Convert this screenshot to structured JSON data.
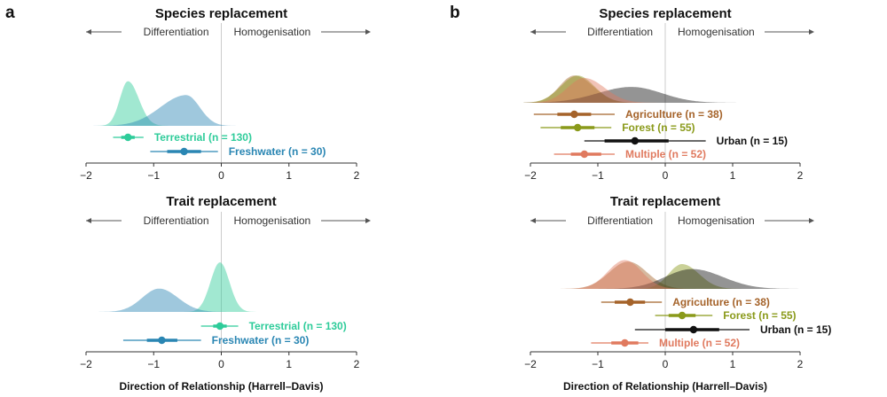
{
  "figure": {
    "panel_labels": [
      "a",
      "b"
    ],
    "direction_left": "Differentiation",
    "direction_right": "Homogenisation"
  },
  "chart_data": [
    {
      "type": "density",
      "panel": "a",
      "title": "Species replacement",
      "xlabel": "",
      "xlim": [
        -2,
        2
      ],
      "xticks": [
        -2,
        -1,
        0,
        1,
        2
      ],
      "series": [
        {
          "name": "Terrestrial (n = 130)",
          "color": "#2ecc9a",
          "density": {
            "mode": -1.38,
            "sd_left": 0.12,
            "sd_right": 0.16,
            "peak": 0.9
          },
          "median": -1.38,
          "ci66": [
            -1.48,
            -1.28
          ],
          "ci95": [
            -1.6,
            -1.15
          ]
        },
        {
          "name": "Freshwater (n = 30)",
          "color": "#2a86b3",
          "density": {
            "mode": -0.52,
            "sd_left": 0.38,
            "sd_right": 0.2,
            "peak": 0.62
          },
          "median": -0.55,
          "ci66": [
            -0.8,
            -0.3
          ],
          "ci95": [
            -1.05,
            -0.05
          ]
        }
      ]
    },
    {
      "type": "density",
      "panel": "a",
      "title": "Trait replacement",
      "xlabel": "Direction of Relationship (Harrell–Davis)",
      "xlim": [
        -2,
        2
      ],
      "xticks": [
        -2,
        -1,
        0,
        1,
        2
      ],
      "series": [
        {
          "name": "Terrestrial (n = 130)",
          "color": "#2ecc9a",
          "density": {
            "mode": -0.02,
            "sd_left": 0.14,
            "sd_right": 0.14,
            "peak": 1.0
          },
          "median": -0.02,
          "ci66": [
            -0.12,
            0.08
          ],
          "ci95": [
            -0.3,
            0.25
          ]
        },
        {
          "name": "Freshwater (n = 30)",
          "color": "#2a86b3",
          "density": {
            "mode": -0.92,
            "sd_left": 0.25,
            "sd_right": 0.28,
            "peak": 0.47
          },
          "median": -0.88,
          "ci66": [
            -1.1,
            -0.65
          ],
          "ci95": [
            -1.45,
            -0.3
          ]
        }
      ]
    },
    {
      "type": "density",
      "panel": "b",
      "title": "Species replacement",
      "xlabel": "",
      "xlim": [
        -2,
        2
      ],
      "xticks": [
        -2,
        -1,
        0,
        1,
        2
      ],
      "series": [
        {
          "name": "Agriculture (n = 38)",
          "color": "#a5632a",
          "density": {
            "mode": -1.35,
            "sd_left": 0.22,
            "sd_right": 0.28,
            "peak": 0.55
          },
          "median": -1.35,
          "ci66": [
            -1.6,
            -1.1
          ],
          "ci95": [
            -1.95,
            -0.75
          ]
        },
        {
          "name": "Forest (n = 55)",
          "color": "#8a9a1a",
          "density": {
            "mode": -1.3,
            "sd_left": 0.25,
            "sd_right": 0.25,
            "peak": 0.55
          },
          "median": -1.3,
          "ci66": [
            -1.55,
            -1.05
          ],
          "ci95": [
            -1.85,
            -0.8
          ]
        },
        {
          "name": "Urban (n = 15)",
          "color": "#111111",
          "density": {
            "mode": -0.5,
            "sd_left": 0.5,
            "sd_right": 0.45,
            "peak": 0.32
          },
          "median": -0.45,
          "ci66": [
            -0.9,
            0.05
          ],
          "ci95": [
            -1.2,
            0.6
          ]
        },
        {
          "name": "Multiple (n = 52)",
          "color": "#e07a5f",
          "density": {
            "mode": -1.2,
            "sd_left": 0.25,
            "sd_right": 0.3,
            "peak": 0.5
          },
          "median": -1.2,
          "ci66": [
            -1.4,
            -0.95
          ],
          "ci95": [
            -1.65,
            -0.75
          ]
        }
      ]
    },
    {
      "type": "density",
      "panel": "b",
      "title": "Trait replacement",
      "xlabel": "Direction of Relationship (Harrell–Davis)",
      "xlim": [
        -2,
        2
      ],
      "xticks": [
        -2,
        -1,
        0,
        1,
        2
      ],
      "series": [
        {
          "name": "Agriculture (n = 38)",
          "color": "#a5632a",
          "density": {
            "mode": -0.55,
            "sd_left": 0.28,
            "sd_right": 0.28,
            "peak": 0.55
          },
          "median": -0.52,
          "ci66": [
            -0.75,
            -0.3
          ],
          "ci95": [
            -0.95,
            -0.05
          ]
        },
        {
          "name": "Forest (n = 55)",
          "color": "#8a9a1a",
          "density": {
            "mode": 0.25,
            "sd_left": 0.2,
            "sd_right": 0.25,
            "peak": 0.5
          },
          "median": 0.25,
          "ci66": [
            0.05,
            0.45
          ],
          "ci95": [
            -0.15,
            0.7
          ]
        },
        {
          "name": "Urban (n = 15)",
          "color": "#111111",
          "density": {
            "mode": 0.4,
            "sd_left": 0.4,
            "sd_right": 0.45,
            "peak": 0.4
          },
          "median": 0.42,
          "ci66": [
            0.0,
            0.8
          ],
          "ci95": [
            -0.45,
            1.25
          ]
        },
        {
          "name": "Multiple (n = 52)",
          "color": "#e07a5f",
          "density": {
            "mode": -0.6,
            "sd_left": 0.25,
            "sd_right": 0.25,
            "peak": 0.58
          },
          "median": -0.6,
          "ci66": [
            -0.8,
            -0.4
          ],
          "ci95": [
            -1.1,
            -0.25
          ]
        }
      ]
    }
  ]
}
